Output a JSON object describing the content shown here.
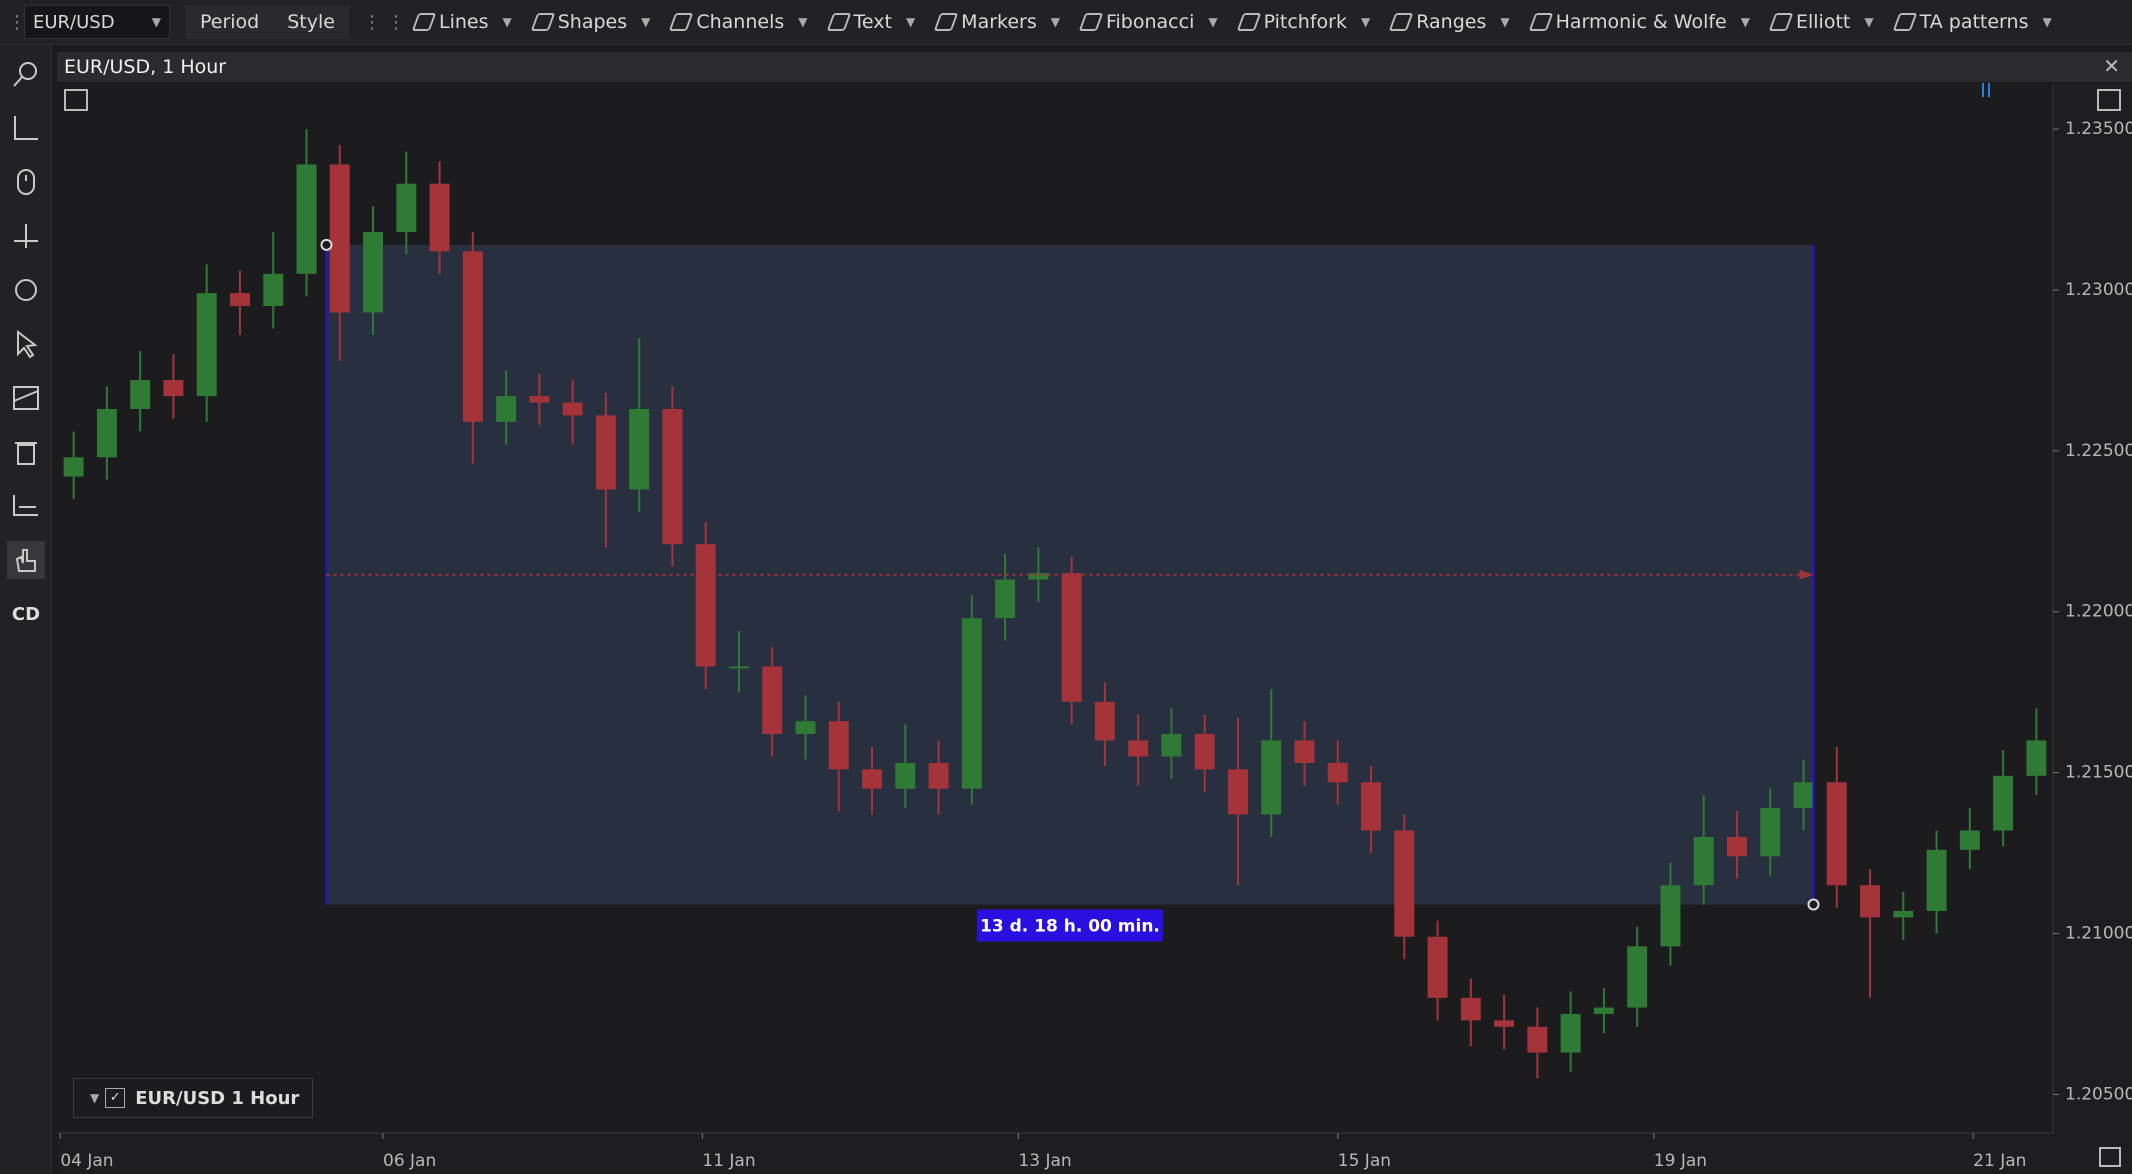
{
  "toolbar": {
    "symbol": "EUR/USD",
    "period": "Period",
    "style": "Style",
    "tools": [
      "Lines",
      "Shapes",
      "Channels",
      "Text",
      "Markers",
      "Fibonacci",
      "Pitchfork",
      "Ranges",
      "Harmonic & Wolfe",
      "Elliott",
      "TA patterns"
    ]
  },
  "side_toolbar": {
    "cd_label": "CD"
  },
  "legend": {
    "label": "EUR/USD 1 Hour"
  },
  "chart_data": {
    "type": "candlestick",
    "title": "EUR/USD, 1 Hour",
    "up_color": "#2f7a35",
    "down_color": "#a5343a",
    "open": [
      1.2242,
      1.2248,
      1.2263,
      1.2272,
      1.2267,
      1.2299,
      1.2295,
      1.2305,
      1.2339,
      1.2293,
      1.2318,
      1.2333,
      1.2312,
      1.2259,
      1.2267,
      1.2265,
      1.2261,
      1.2238,
      1.2263,
      1.2221,
      1.2183,
      1.2183,
      1.2162,
      1.2166,
      1.2151,
      1.2145,
      1.2153,
      1.2145,
      1.2198,
      1.221,
      1.2212,
      1.2172,
      1.216,
      1.2155,
      1.2162,
      1.2151,
      1.2137,
      1.216,
      1.2153,
      1.2147,
      1.2132,
      1.2099,
      1.208,
      1.2073,
      1.2071,
      1.2063,
      1.2075,
      1.2077,
      1.2096,
      1.2115,
      1.213,
      1.2124,
      1.2139,
      1.2147,
      1.2115,
      1.2105,
      1.2107,
      1.2126,
      1.2132,
      1.2149
    ],
    "high": [
      1.2256,
      1.227,
      1.2281,
      1.228,
      1.2308,
      1.2306,
      1.2318,
      1.235,
      1.2345,
      1.2326,
      1.2343,
      1.234,
      1.2318,
      1.2275,
      1.2274,
      1.2272,
      1.2268,
      1.2285,
      1.227,
      1.2228,
      1.2194,
      1.2189,
      1.2174,
      1.2172,
      1.2158,
      1.2165,
      1.216,
      1.2205,
      1.2218,
      1.222,
      1.2217,
      1.2178,
      1.2168,
      1.217,
      1.2168,
      1.2167,
      1.2176,
      1.2166,
      1.216,
      1.2152,
      1.2137,
      1.2104,
      1.2086,
      1.2081,
      1.2077,
      1.2082,
      1.2083,
      1.2102,
      1.2122,
      1.2143,
      1.2138,
      1.2145,
      1.2154,
      1.2158,
      1.212,
      1.2113,
      1.2132,
      1.2139,
      1.2157,
      1.217
    ],
    "low": [
      1.2235,
      1.2241,
      1.2256,
      1.226,
      1.2259,
      1.2286,
      1.2288,
      1.2298,
      1.2278,
      1.2286,
      1.2311,
      1.2305,
      1.2246,
      1.2252,
      1.2258,
      1.2252,
      1.222,
      1.2231,
      1.2214,
      1.2176,
      1.2175,
      1.2155,
      1.2154,
      1.2138,
      1.2137,
      1.2139,
      1.2137,
      1.214,
      1.2191,
      1.2203,
      1.2165,
      1.2152,
      1.2146,
      1.2148,
      1.2144,
      1.2115,
      1.213,
      1.2146,
      1.214,
      1.2125,
      1.2092,
      1.2073,
      1.2065,
      1.2064,
      1.2055,
      1.2057,
      1.2069,
      1.2071,
      1.209,
      1.2109,
      1.2117,
      1.2118,
      1.2132,
      1.2108,
      1.208,
      1.2098,
      1.21,
      1.212,
      1.2127,
      1.2143
    ],
    "close": [
      1.2248,
      1.2263,
      1.2272,
      1.2267,
      1.2299,
      1.2295,
      1.2305,
      1.2339,
      1.2293,
      1.2318,
      1.2333,
      1.2312,
      1.2259,
      1.2267,
      1.2265,
      1.2261,
      1.2238,
      1.2263,
      1.2221,
      1.2183,
      1.2183,
      1.2162,
      1.2166,
      1.2151,
      1.2145,
      1.2153,
      1.2145,
      1.2198,
      1.221,
      1.2212,
      1.2172,
      1.216,
      1.2155,
      1.2162,
      1.2151,
      1.2137,
      1.216,
      1.2153,
      1.2147,
      1.2132,
      1.2099,
      1.208,
      1.2073,
      1.2071,
      1.2063,
      1.2075,
      1.2077,
      1.2096,
      1.2115,
      1.213,
      1.2124,
      1.2139,
      1.2147,
      1.2115,
      1.2105,
      1.2107,
      1.2126,
      1.2132,
      1.2149,
      1.216
    ],
    "xlim": [
      0,
      60
    ],
    "xticks": [
      {
        "value": 0.1,
        "label": "04 Jan"
      },
      {
        "value": 9.8,
        "label": "06 Jan"
      },
      {
        "value": 19.4,
        "label": "11 Jan"
      },
      {
        "value": 28.9,
        "label": "13 Jan"
      },
      {
        "value": 38.5,
        "label": "15 Jan"
      },
      {
        "value": 48,
        "label": "19 Jan"
      },
      {
        "value": 57.6,
        "label": "21 Jan"
      }
    ],
    "ylim": [
      1.2038,
      1.2364
    ],
    "yticks": [
      {
        "value": 1.235,
        "label": "1.23500"
      },
      {
        "value": 1.23,
        "label": "1.23000"
      },
      {
        "value": 1.225,
        "label": "1.22500"
      },
      {
        "value": 1.22,
        "label": "1.22000"
      },
      {
        "value": 1.215,
        "label": "1.21500"
      },
      {
        "value": 1.21,
        "label": "1.21000"
      },
      {
        "value": 1.205,
        "label": "1.20500"
      }
    ],
    "range": {
      "x": [
        8.1,
        52.8
      ],
      "y": [
        1.2314,
        1.2109
      ],
      "label": "13 d. 18 h. 00 min.",
      "color": "#2a10e0"
    }
  }
}
